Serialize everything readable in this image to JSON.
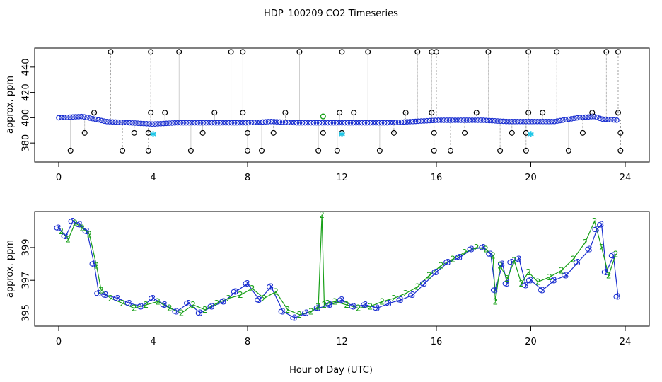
{
  "chart_data": [
    {
      "type": "scatter",
      "panel": "top",
      "title": "HDP_100209  CO2 Timeseries",
      "ylabel": "approx. ppm",
      "xlabel": "",
      "xlim": [
        0,
        24
      ],
      "ylim": [
        365,
        455
      ],
      "xticks": [
        "0",
        "4",
        "8",
        "12",
        "16",
        "20",
        "24"
      ],
      "yticks": [
        "380",
        "400",
        "420",
        "440"
      ],
      "grid": false,
      "baseline": {
        "color": "#1a2fd0",
        "x": [
          0.0,
          1.0,
          2.0,
          3.0,
          4.0,
          5.0,
          6.0,
          7.0,
          8.0,
          9.0,
          10.0,
          11.0,
          12.0,
          13.0,
          14.0,
          15.0,
          16.0,
          17.0,
          18.0,
          19.0,
          20.0,
          21.0,
          22.0,
          22.7,
          23.0,
          23.7
        ],
        "y": [
          400,
          401,
          397,
          396,
          395,
          396,
          396,
          396,
          396,
          397,
          396,
          396,
          396,
          396,
          396,
          397,
          398,
          398,
          398,
          397,
          397,
          397,
          400,
          401,
          399,
          398
        ]
      },
      "outliers_high": [
        2.2,
        3.9,
        5.1,
        7.3,
        7.8,
        10.2,
        12.0,
        13.1,
        15.2,
        15.8,
        16.0,
        18.2,
        19.9,
        21.1,
        23.2,
        23.7
      ],
      "outliers_high_value": 452,
      "outliers_mid": [
        1.5,
        3.9,
        4.5,
        6.6,
        7.8,
        9.6,
        11.9,
        12.5,
        14.7,
        15.8,
        17.7,
        19.9,
        20.5,
        22.6,
        23.7
      ],
      "outliers_mid_value": 404,
      "outliers_low": [
        0.5,
        2.7,
        3.8,
        5.6,
        8.0,
        8.6,
        11.0,
        11.8,
        13.6,
        15.9,
        16.6,
        18.7,
        19.8,
        21.6,
        23.8
      ],
      "outliers_low_value": 374,
      "outliers_388": [
        1.1,
        3.2,
        3.8,
        6.1,
        8.0,
        9.1,
        11.2,
        12.0,
        14.2,
        15.9,
        17.2,
        19.2,
        19.8,
        22.2,
        23.8
      ],
      "outliers_388_value": 388,
      "green_points": [
        {
          "x": 11.2,
          "y": 401
        }
      ],
      "cyan_points": [
        {
          "x": 4.0,
          "y": 387
        },
        {
          "x": 12.0,
          "y": 387
        },
        {
          "x": 20.0,
          "y": 387
        }
      ]
    },
    {
      "type": "line",
      "panel": "bottom",
      "ylabel": "approx. ppm",
      "xlabel": "Hour of Day (UTC)",
      "xlim": [
        0,
        24
      ],
      "ylim": [
        394.2,
        401.2
      ],
      "xticks": [
        "0",
        "4",
        "8",
        "12",
        "16",
        "20",
        "24"
      ],
      "yticks": [
        "395",
        "397",
        "399"
      ],
      "grid": false,
      "series": [
        {
          "marker": "3",
          "color": "#1a2fd0",
          "x": [
            0.0,
            0.3,
            0.6,
            0.9,
            1.2,
            1.5,
            1.7,
            2.0,
            2.5,
            3.0,
            3.5,
            4.0,
            4.5,
            5.0,
            5.5,
            6.0,
            6.5,
            7.0,
            7.5,
            8.0,
            8.5,
            9.0,
            9.5,
            10.0,
            10.5,
            11.0,
            11.5,
            12.0,
            12.5,
            13.0,
            13.5,
            14.0,
            14.5,
            15.0,
            15.5,
            16.0,
            16.5,
            17.0,
            17.5,
            18.0,
            18.3,
            18.5,
            18.8,
            19.0,
            19.2,
            19.5,
            19.8,
            20.0,
            20.5,
            21.0,
            21.5,
            22.0,
            22.5,
            22.8,
            23.0,
            23.2,
            23.5,
            23.7
          ],
          "y": [
            400.2,
            399.7,
            400.6,
            400.4,
            400.0,
            398.0,
            396.2,
            396.1,
            395.9,
            395.6,
            395.4,
            395.9,
            395.5,
            395.1,
            395.6,
            395.0,
            395.4,
            395.7,
            396.3,
            396.8,
            395.8,
            396.6,
            395.1,
            394.7,
            395.0,
            395.3,
            395.5,
            395.8,
            395.4,
            395.5,
            395.3,
            395.6,
            395.8,
            396.1,
            396.8,
            397.5,
            398.1,
            398.4,
            398.9,
            399.0,
            398.6,
            396.4,
            398.0,
            396.8,
            398.1,
            398.3,
            396.7,
            397.0,
            396.4,
            397.0,
            397.3,
            398.1,
            398.9,
            400.1,
            400.4,
            397.5,
            398.5,
            396.0
          ]
        },
        {
          "marker": "2",
          "color": "#19a019",
          "x": [
            0.1,
            0.4,
            0.7,
            1.0,
            1.3,
            1.6,
            1.8,
            2.2,
            2.7,
            3.2,
            3.7,
            4.2,
            4.7,
            5.2,
            5.7,
            6.2,
            6.7,
            7.2,
            7.7,
            8.2,
            8.7,
            9.2,
            9.7,
            10.2,
            10.7,
            11.0,
            11.15,
            11.25,
            11.4,
            11.7,
            12.2,
            12.7,
            13.2,
            13.7,
            14.2,
            14.7,
            15.2,
            15.7,
            16.2,
            16.7,
            17.2,
            17.7,
            18.1,
            18.4,
            18.5,
            18.7,
            19.0,
            19.3,
            19.6,
            19.9,
            20.3,
            20.8,
            21.3,
            21.8,
            22.3,
            22.7,
            23.0,
            23.3,
            23.6
          ],
          "y": [
            400.0,
            399.5,
            400.5,
            400.2,
            399.8,
            397.9,
            396.4,
            395.9,
            395.6,
            395.3,
            395.5,
            395.7,
            395.3,
            395.0,
            395.5,
            395.2,
            395.6,
            395.9,
            396.1,
            396.5,
            395.9,
            396.3,
            395.2,
            394.9,
            395.1,
            395.4,
            401.0,
            395.5,
            395.6,
            395.7,
            395.5,
            395.3,
            395.4,
            395.7,
            395.9,
            396.2,
            396.6,
            397.3,
            397.9,
            398.3,
            398.7,
            399.0,
            398.9,
            398.5,
            395.7,
            397.9,
            397.1,
            398.2,
            396.8,
            397.5,
            396.9,
            397.2,
            397.6,
            398.3,
            399.3,
            400.6,
            399.0,
            397.3,
            398.6
          ]
        }
      ]
    }
  ]
}
